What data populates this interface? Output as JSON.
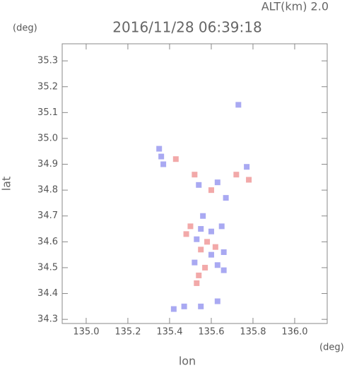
{
  "chart_data": {
    "type": "scatter",
    "title": "2016/11/28 06:39:18",
    "subtitle": "ALT(km) 2.0",
    "y_unit": "(deg)",
    "x_unit": "(deg)",
    "x_label": "lon",
    "y_label": "lat",
    "xlim": [
      134.885,
      136.156
    ],
    "ylim": [
      34.284,
      35.366
    ],
    "xticks": [
      {
        "value": 135,
        "label": "135.0"
      },
      135.2,
      135.4,
      135.6,
      135.8,
      {
        "value": 136,
        "label": "136.0"
      }
    ],
    "yticks": [
      34.3,
      34.4,
      34.5,
      34.6,
      34.7,
      34.8,
      34.9,
      {
        "value": 35,
        "label": "35.0"
      },
      35.1,
      35.2,
      35.3
    ],
    "x": [
      135.73,
      135.35,
      135.36,
      135.37,
      135.43,
      135.52,
      135.54,
      135.6,
      135.63,
      135.72,
      135.77,
      135.78,
      135.67,
      135.56,
      135.5,
      135.55,
      135.6,
      135.65,
      135.48,
      135.53,
      135.58,
      135.62,
      135.55,
      135.6,
      135.66,
      135.52,
      135.57,
      135.63,
      135.66,
      135.54,
      135.53,
      135.42,
      135.47,
      135.55,
      135.63
    ],
    "values": [
      35.13,
      34.96,
      34.93,
      34.9,
      34.92,
      34.86,
      34.82,
      34.8,
      34.83,
      34.86,
      34.89,
      34.84,
      34.77,
      34.7,
      34.66,
      34.65,
      34.64,
      34.66,
      34.63,
      34.61,
      34.6,
      34.58,
      34.57,
      34.55,
      34.56,
      34.52,
      34.5,
      34.51,
      34.49,
      34.47,
      34.44,
      34.34,
      34.35,
      34.35,
      34.37
    ],
    "colors": [
      "#9a9af0",
      "#9a9af0",
      "#9a9af0",
      "#9a9af0",
      "#f09a9a",
      "#f09a9a",
      "#9a9af0",
      "#f09a9a",
      "#9a9af0",
      "#f09a9a",
      "#9a9af0",
      "#f09a9a",
      "#9a9af0",
      "#9a9af0",
      "#f09a9a",
      "#9a9af0",
      "#9a9af0",
      "#9a9af0",
      "#f09a9a",
      "#9a9af0",
      "#f09a9a",
      "#f09a9a",
      "#f09a9a",
      "#9a9af0",
      "#9a9af0",
      "#9a9af0",
      "#f09a9a",
      "#9a9af0",
      "#9a9af0",
      "#f09a9a",
      "#f09a9a",
      "#9a9af0",
      "#9a9af0",
      "#9a9af0",
      "#9a9af0"
    ]
  }
}
